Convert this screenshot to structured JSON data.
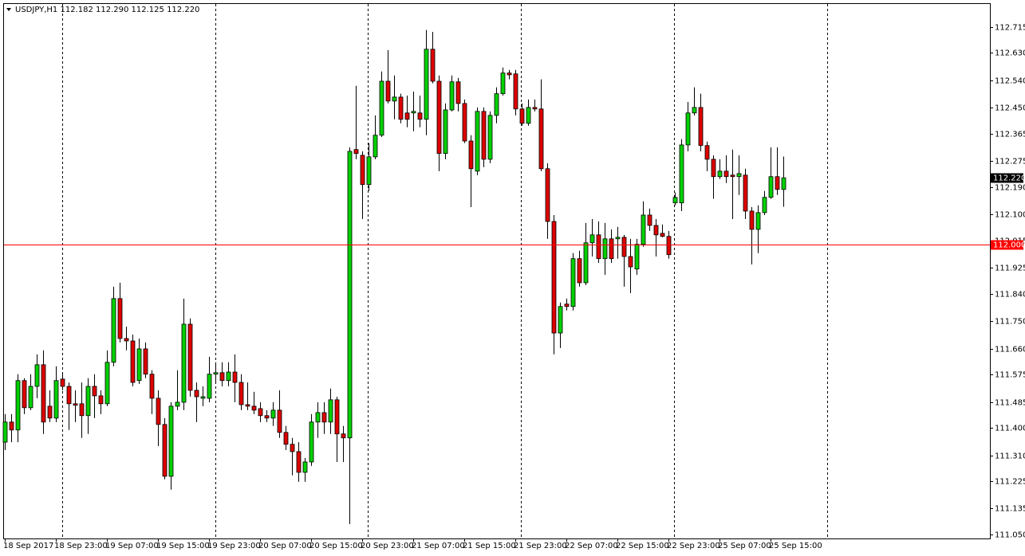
{
  "chart_data": {
    "type": "candlestick",
    "title": "USDJPY,H1  112.182 112.290 112.125 112.220",
    "categories": [
      "18 Sep 2017",
      null,
      null,
      null,
      null,
      null,
      null,
      null,
      "18 Sep 23:00",
      null,
      null,
      null,
      null,
      null,
      null,
      null,
      "19 Sep 07:00",
      null,
      null,
      null,
      null,
      null,
      null,
      null,
      "19 Sep 15:00",
      null,
      null,
      null,
      null,
      null,
      null,
      null,
      "19 Sep 23:00",
      null,
      null,
      null,
      null,
      null,
      null,
      null,
      "20 Sep 07:00",
      null,
      null,
      null,
      null,
      null,
      null,
      null,
      "20 Sep 15:00",
      null,
      null,
      null,
      null,
      null,
      null,
      null,
      "20 Sep 23:00",
      null,
      null,
      null,
      null,
      null,
      null,
      null,
      "21 Sep 07:00",
      null,
      null,
      null,
      null,
      null,
      null,
      null,
      "21 Sep 15:00",
      null,
      null,
      null,
      null,
      null,
      null,
      null,
      "21 Sep 23:00",
      null,
      null,
      null,
      null,
      null,
      null,
      null,
      "22 Sep 07:00",
      null,
      null,
      null,
      null,
      null,
      null,
      null,
      "22 Sep 15:00",
      null,
      null,
      null,
      null,
      null,
      null,
      null,
      "22 Sep 23:00",
      null,
      null,
      null,
      null,
      null,
      null,
      null,
      "25 Sep 07:00",
      null,
      null,
      null,
      null,
      null,
      null,
      null,
      "25 Sep 15:00",
      null,
      null
    ],
    "open": [
      111.353,
      111.419,
      111.393,
      111.555,
      111.466,
      111.536,
      111.607,
      111.471,
      111.432,
      111.56,
      111.536,
      111.479,
      111.479,
      111.44,
      111.536,
      111.505,
      111.479,
      111.615,
      111.824,
      111.693,
      111.685,
      111.555,
      111.659,
      111.576,
      111.497,
      111.411,
      111.241,
      111.471,
      111.484,
      111.74,
      111.523,
      111.497,
      111.497,
      111.576,
      111.581,
      111.555,
      111.583,
      111.549,
      111.476,
      111.471,
      111.463,
      111.44,
      111.432,
      111.458,
      111.385,
      111.346,
      111.322,
      111.254,
      111.288,
      111.419,
      111.45,
      111.419,
      111.492,
      111.38,
      111.367,
      112.313,
      112.294,
      112.198,
      112.289,
      112.36,
      112.537,
      112.472,
      112.485,
      112.433,
      112.433,
      112.433,
      112.412,
      112.642,
      112.537,
      112.3,
      112.443,
      112.535,
      112.464,
      112.341,
      112.242,
      112.438,
      112.281,
      112.425,
      112.496,
      112.564,
      112.561,
      112.446,
      112.399,
      112.451,
      112.446,
      112.25,
      112.077,
      111.711,
      111.806,
      111.798,
      111.955,
      111.876,
      112.007,
      112.033,
      111.955,
      112.02,
      112.02,
      112.025,
      111.962,
      111.921,
      112.002,
      112.098,
      112.064,
      112.038,
      112.028,
      112.138,
      112.138,
      112.328,
      112.433,
      112.451,
      112.326,
      112.281,
      112.224,
      112.242,
      112.229,
      112.224,
      112.229,
      112.111,
      112.051,
      112.106,
      112.156,
      112.224,
      112.182
    ],
    "high": [
      111.445,
      111.445,
      111.576,
      111.563,
      111.576,
      111.641,
      111.654,
      111.523,
      111.602,
      111.576,
      111.549,
      111.523,
      111.549,
      111.563,
      111.576,
      111.523,
      111.654,
      111.863,
      111.876,
      111.732,
      111.706,
      111.693,
      111.68,
      111.589,
      111.523,
      111.432,
      111.484,
      111.589,
      111.824,
      111.759,
      111.549,
      111.536,
      111.633,
      111.615,
      111.615,
      111.615,
      111.641,
      111.576,
      111.549,
      111.518,
      111.484,
      111.458,
      111.484,
      111.523,
      111.406,
      111.367,
      111.353,
      111.301,
      111.445,
      111.484,
      111.484,
      111.529,
      111.502,
      111.406,
      112.32,
      112.522,
      112.307,
      112.334,
      112.425,
      112.569,
      112.639,
      112.556,
      112.496,
      112.49,
      112.503,
      112.49,
      112.705,
      112.699,
      112.556,
      112.464,
      112.556,
      112.548,
      112.477,
      112.36,
      112.451,
      112.451,
      112.438,
      112.517,
      112.582,
      112.574,
      112.574,
      112.464,
      112.477,
      112.477,
      112.543,
      112.268,
      112.098,
      111.811,
      111.824,
      111.973,
      111.981,
      112.072,
      112.085,
      112.077,
      112.072,
      112.051,
      112.059,
      112.033,
      112.02,
      112.02,
      112.143,
      112.119,
      112.085,
      112.067,
      112.046,
      112.172,
      112.347,
      112.469,
      112.517,
      112.496,
      112.339,
      112.294,
      112.281,
      112.294,
      112.313,
      112.294,
      112.25,
      112.124,
      112.13,
      112.177,
      112.32,
      112.32,
      112.29
    ],
    "low": [
      111.327,
      111.353,
      111.353,
      111.445,
      111.458,
      111.497,
      111.38,
      111.419,
      111.419,
      111.523,
      111.393,
      111.419,
      111.367,
      111.38,
      111.432,
      111.445,
      111.471,
      111.602,
      111.68,
      111.654,
      111.536,
      111.544,
      111.563,
      111.445,
      111.34,
      111.231,
      111.197,
      111.458,
      111.458,
      111.502,
      111.419,
      111.471,
      111.484,
      111.549,
      111.536,
      111.536,
      111.484,
      111.458,
      111.458,
      111.445,
      111.419,
      111.419,
      111.406,
      111.367,
      111.327,
      111.244,
      111.223,
      111.223,
      111.275,
      111.367,
      111.38,
      111.38,
      111.288,
      111.288,
      111.084,
      112.281,
      112.085,
      112.177,
      112.281,
      112.354,
      112.464,
      112.412,
      112.399,
      112.386,
      112.373,
      112.386,
      112.36,
      112.53,
      112.242,
      112.281,
      112.438,
      112.438,
      112.334,
      112.124,
      112.229,
      112.255,
      112.268,
      112.399,
      112.49,
      112.543,
      112.425,
      112.391,
      112.391,
      112.438,
      112.242,
      112.02,
      111.641,
      111.662,
      111.785,
      111.785,
      111.863,
      111.868,
      111.962,
      111.941,
      111.902,
      111.941,
      111.955,
      111.863,
      111.842,
      111.902,
      111.994,
      112.046,
      111.962,
      112.025,
      111.955,
      112.13,
      112.111,
      112.307,
      112.425,
      112.307,
      112.242,
      112.151,
      112.216,
      112.203,
      112.085,
      112.164,
      112.085,
      111.936,
      111.973,
      112.098,
      112.151,
      112.164,
      112.125
    ],
    "close": [
      111.419,
      111.393,
      111.555,
      111.466,
      111.536,
      111.607,
      111.419,
      111.432,
      111.555,
      111.536,
      111.479,
      111.474,
      111.44,
      111.536,
      111.505,
      111.479,
      111.615,
      111.824,
      111.693,
      111.685,
      111.549,
      111.659,
      111.576,
      111.497,
      111.411,
      111.241,
      111.471,
      111.484,
      111.74,
      111.523,
      111.502,
      111.502,
      111.576,
      111.581,
      111.555,
      111.583,
      111.549,
      111.476,
      111.471,
      111.458,
      111.44,
      111.432,
      111.458,
      111.385,
      111.346,
      111.322,
      111.254,
      111.288,
      111.419,
      111.45,
      111.419,
      111.492,
      111.38,
      111.367,
      112.307,
      112.3,
      112.198,
      112.289,
      112.36,
      112.537,
      112.472,
      112.485,
      112.412,
      112.412,
      112.438,
      112.412,
      112.642,
      112.537,
      112.3,
      112.443,
      112.535,
      112.464,
      112.341,
      112.25,
      112.438,
      112.281,
      112.425,
      112.496,
      112.564,
      112.558,
      112.446,
      112.399,
      112.451,
      112.446,
      112.25,
      112.077,
      111.711,
      111.798,
      111.798,
      111.955,
      111.876,
      112.007,
      112.033,
      111.955,
      112.02,
      111.955,
      112.025,
      111.962,
      111.928,
      112.002,
      112.098,
      112.064,
      112.033,
      112.028,
      111.968,
      112.156,
      112.328,
      112.433,
      112.451,
      112.326,
      112.281,
      112.224,
      112.242,
      112.224,
      112.224,
      112.234,
      112.111,
      112.051,
      112.106,
      112.156,
      112.224,
      112.182,
      112.22
    ],
    "up_color": "#00d000",
    "down_color": "#dd0000",
    "ylim": [
      111.037,
      112.793
    ],
    "yticks": [
      112.715,
      {
        "value": 112.63,
        "label": "112.630"
      },
      {
        "value": 112.54,
        "label": "112.540"
      },
      {
        "value": 112.45,
        "label": "112.450"
      },
      112.365,
      112.275,
      {
        "value": 112.19,
        "label": "112.190"
      },
      {
        "value": 112.1,
        "label": "112.100"
      },
      112.015,
      111.925,
      {
        "value": 111.84,
        "label": "111.840"
      },
      {
        "value": 111.75,
        "label": "111.750"
      },
      {
        "value": 111.66,
        "label": "111.660"
      },
      111.575,
      111.485,
      {
        "value": 111.4,
        "label": "111.400"
      },
      {
        "value": 111.31,
        "label": "111.310"
      },
      111.225,
      111.135,
      {
        "value": 111.05,
        "label": "111.050"
      }
    ],
    "grid": false,
    "price_line": {
      "value": 112,
      "label": "112.000",
      "color": "#ff0000"
    },
    "last_price": {
      "value": 112.22,
      "label": "112.220"
    }
  }
}
